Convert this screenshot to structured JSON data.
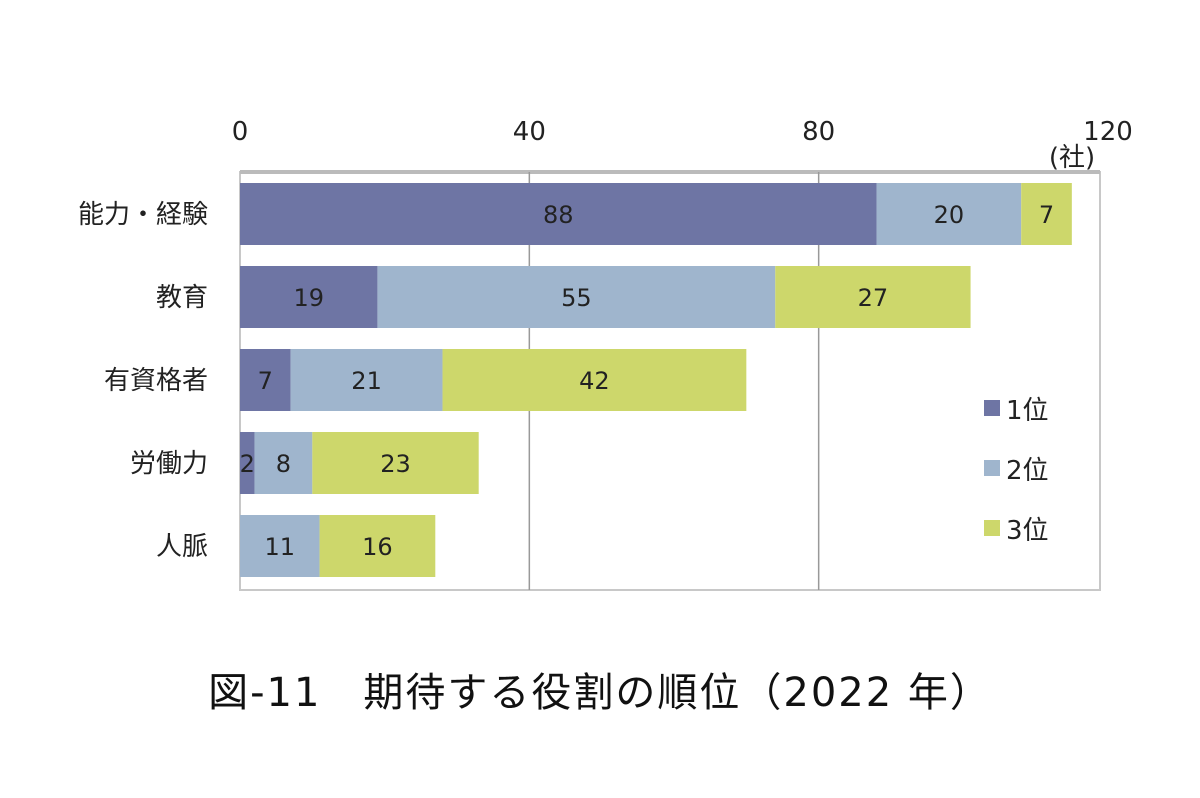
{
  "chart_data": {
    "type": "bar",
    "orientation": "horizontal",
    "stacked": true,
    "title": "図-11　期待する役割の順位（2022 年）",
    "unit_label": "(社)",
    "xlim": [
      0,
      120
    ],
    "xticks": [
      0,
      40,
      80,
      120
    ],
    "grid": true,
    "legend_position": "right",
    "categories": [
      "能力・経験",
      "教育",
      "有資格者",
      "労働力",
      "人脈"
    ],
    "series": [
      {
        "name": "1位",
        "color": "#6e75a4",
        "values": [
          88,
          19,
          7,
          2,
          0
        ]
      },
      {
        "name": "2位",
        "color": "#9fb5cd",
        "values": [
          20,
          55,
          21,
          8,
          11
        ]
      },
      {
        "name": "3位",
        "color": "#cdd76b",
        "values": [
          7,
          27,
          42,
          23,
          16
        ]
      }
    ]
  }
}
